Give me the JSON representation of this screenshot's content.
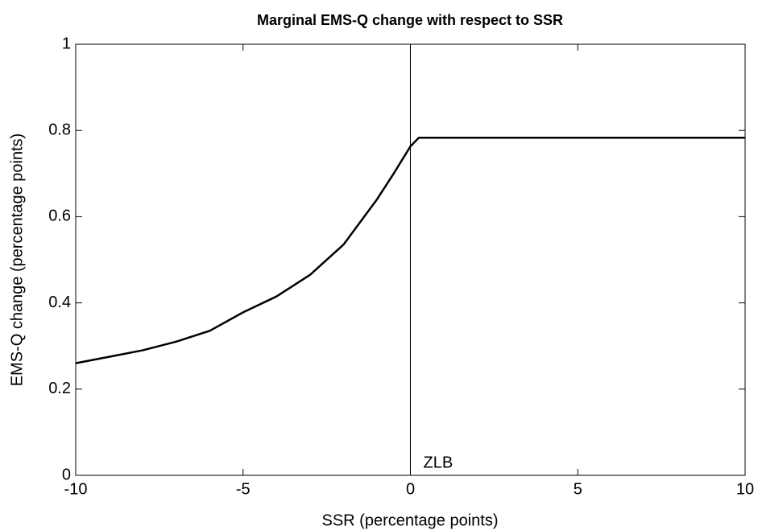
{
  "chart_data": {
    "type": "line",
    "title": "Marginal EMS-Q change with respect to SSR",
    "x_label": "SSR (percentage points)",
    "y_label": "EMS-Q change (percentage points)",
    "x": [
      -10,
      -9,
      -8,
      -7,
      -6,
      -5,
      -4,
      -3,
      -2,
      -1,
      -0.5,
      0,
      0.25,
      10
    ],
    "values": [
      0.26,
      0.275,
      0.29,
      0.31,
      0.335,
      0.378,
      0.415,
      0.465,
      0.535,
      0.64,
      0.7,
      0.763,
      0.783,
      0.783
    ],
    "color": "#000000",
    "vline_x": 0,
    "annotation": "ZLB",
    "xlim": [
      -10,
      10
    ],
    "xticks": [
      -10,
      -5,
      0,
      5,
      10
    ],
    "ylim": [
      0,
      1
    ],
    "yticks": [
      0,
      0.2,
      0.4,
      0.6,
      0.8,
      1
    ],
    "grid": false
  }
}
